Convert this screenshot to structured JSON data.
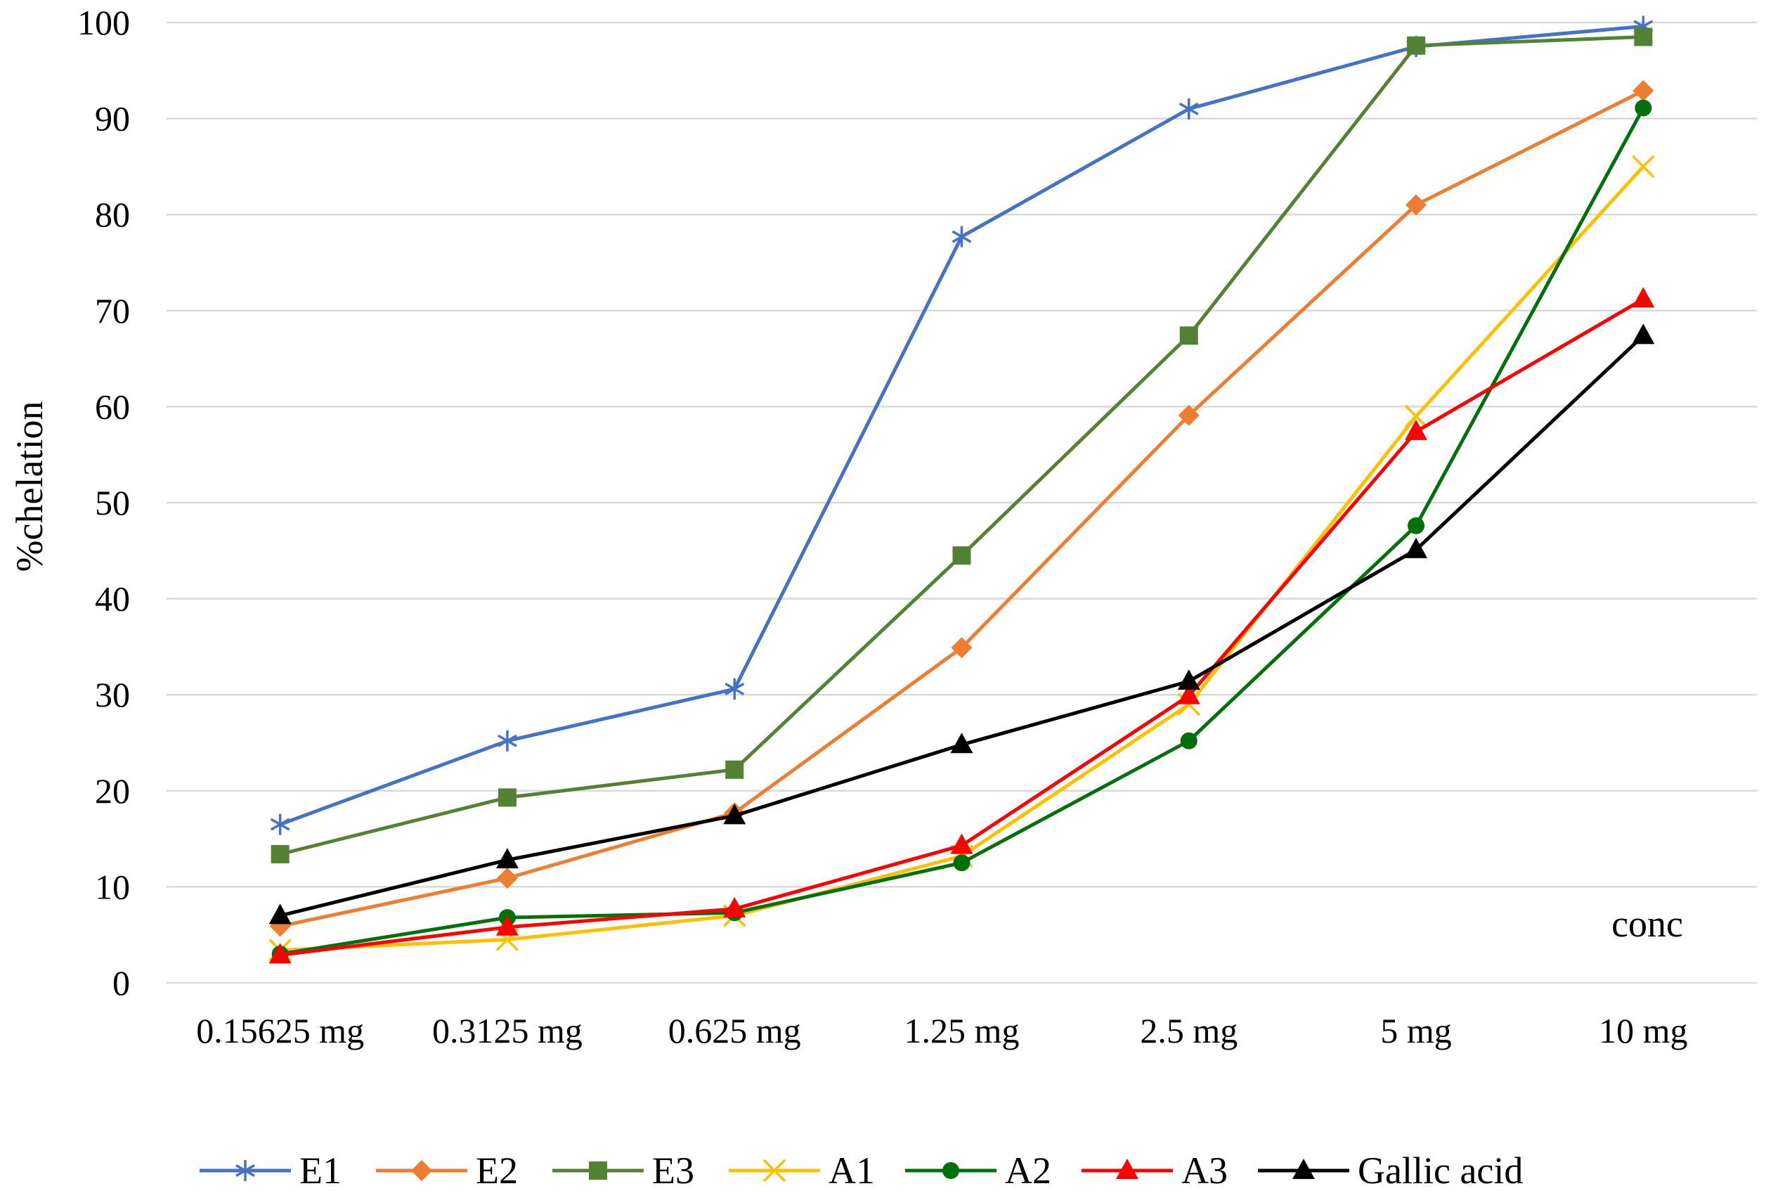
{
  "chart_data": {
    "type": "line",
    "title": "",
    "xlabel": "conc",
    "ylabel": "%chelation",
    "categories": [
      "0.15625 mg",
      "0.3125 mg",
      "0.625 mg",
      "1.25 mg",
      "2.5 mg",
      "5 mg",
      "10 mg"
    ],
    "ylim": [
      0,
      100
    ],
    "yticks": [
      0,
      10,
      20,
      30,
      40,
      50,
      60,
      70,
      80,
      90,
      100
    ],
    "grid": true,
    "legend": "bottom",
    "series": [
      {
        "name": "E1",
        "color": "#4472C4",
        "marker": "asterisk",
        "values": [
          16.5,
          25.2,
          30.6,
          77.7,
          91.0,
          97.5,
          99.6
        ]
      },
      {
        "name": "E2",
        "color": "#ED7D31",
        "marker": "diamond",
        "values": [
          5.9,
          10.9,
          17.7,
          34.9,
          59.1,
          81.0,
          92.9
        ]
      },
      {
        "name": "E3",
        "color": "#548235",
        "marker": "square",
        "values": [
          13.4,
          19.3,
          22.2,
          44.5,
          67.4,
          97.6,
          98.5
        ]
      },
      {
        "name": "A1",
        "color": "#FFC000",
        "marker": "x",
        "values": [
          3.4,
          4.5,
          7.0,
          13.2,
          29.0,
          59.0,
          85.0
        ]
      },
      {
        "name": "A2",
        "color": "#00700A",
        "marker": "circle",
        "values": [
          3.0,
          6.8,
          7.3,
          12.5,
          25.2,
          47.6,
          91.1
        ]
      },
      {
        "name": "A3",
        "color": "#FF0000",
        "marker": "triangle",
        "values": [
          2.9,
          5.8,
          7.7,
          14.3,
          29.9,
          57.4,
          71.2
        ]
      },
      {
        "name": "Gallic acid",
        "color": "#000000",
        "marker": "triangle",
        "values": [
          7.0,
          12.8,
          17.4,
          24.8,
          31.4,
          45.1,
          67.4
        ]
      }
    ]
  }
}
